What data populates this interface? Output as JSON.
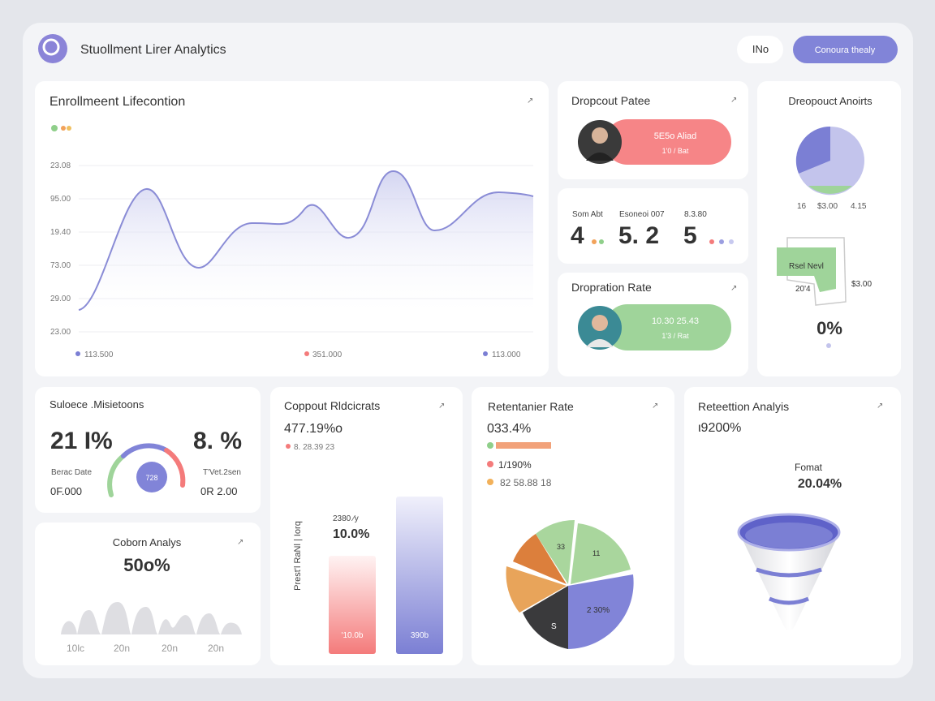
{
  "header": {
    "title": "Stuollment Lirer Analytics",
    "button_secondary": "INo",
    "button_primary": "Conoura thealy"
  },
  "enrollment": {
    "title": "Enrollmeent Lifecontion",
    "y_labels": [
      "23.08",
      "95.00",
      "19.40",
      "73.00",
      "29.00",
      "23.00"
    ],
    "legend": [
      "113.500",
      "351.000",
      "113.000"
    ]
  },
  "dropout_patee": {
    "title": "Dropcout Patee",
    "line1": "5E5o Aliad",
    "line2": "1'0 / Bat"
  },
  "stats": [
    {
      "label": "Som Abt",
      "value": "4"
    },
    {
      "label": "Esoneoi 007",
      "value": "5. 2"
    },
    {
      "label": "8.3.80",
      "value": "5"
    }
  ],
  "dropration": {
    "title": "Dropration Rate",
    "line1": "10.30 25.43",
    "line2": "1'3 / Rat"
  },
  "dreopouct": {
    "title": "Dreopouct Anoirts",
    "pie_labels": [
      "16",
      "$3.00",
      "4.15"
    ],
    "tag": "Rsel Nevl",
    "tag_left": "20'4",
    "tag_right": "$3.00",
    "big": "0%"
  },
  "suloece": {
    "title": "Suloece .Misietoons",
    "left_value": "21 I%",
    "right_value": "8. %",
    "left_label": "Berac Date",
    "left_sub": "0F.000",
    "right_label": "T'Vet.2sen",
    "right_sub": "0R 2.00",
    "gauge": "728"
  },
  "coborn": {
    "title": "Coborn Analys",
    "value": "50o%",
    "x_labels": [
      "10lc",
      "20n",
      "20n",
      "20n"
    ]
  },
  "coppout": {
    "title": "Coppout Rldcicrats",
    "value": "477.19%o",
    "sub": "8. 28.39 23",
    "axis_label": "Prest'l RaNl | Iorq",
    "note": "2380 ⁄y",
    "note_value": "10.0%",
    "bar_labels": [
      "'10.0b",
      "390b"
    ]
  },
  "retentanier": {
    "title": "Retentanier Rate",
    "value": "033.4%",
    "legend": [
      "1/190%",
      "82 58.88 18"
    ],
    "pie_labels": [
      "33",
      "11",
      "2 30%",
      "S"
    ]
  },
  "reteettion": {
    "title": "Reteettion Analyis",
    "value": "ι9200%",
    "label": "Fomat",
    "label_value": "20.04%"
  }
}
